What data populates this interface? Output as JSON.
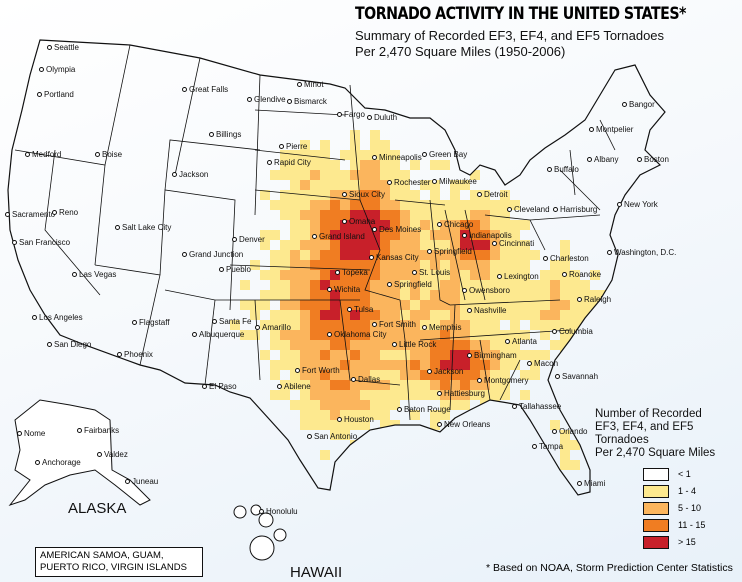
{
  "title": "TORNADO ACTIVITY IN THE UNITED STATES*",
  "subtitle_line1": "Summary  of Recorded EF3, EF4, and EF5 Tornadoes",
  "subtitle_line2": "Per 2,470 Square Miles (1950-2006)",
  "region_labels": {
    "alaska": "ALASKA",
    "hawaii": "HAWAII",
    "territories_line1": "AMERICAN SAMOA, GUAM,",
    "territories_line2": "PUERTO RICO, VIRGIN ISLANDS"
  },
  "legend": {
    "title_line1": "Number of Recorded",
    "title_line2": "EF3, EF4, and EF5 Tornadoes",
    "title_line3": "Per 2,470 Square Miles",
    "classes": [
      {
        "label": "< 1",
        "color": "#ffffff"
      },
      {
        "label": "1 - 4",
        "color": "#fde98f"
      },
      {
        "label": "5 - 10",
        "color": "#fbb55d"
      },
      {
        "label": "11 - 15",
        "color": "#f07d22"
      },
      {
        "label": "> 15",
        "color": "#c8202a"
      }
    ]
  },
  "footnote": "* Based on NOAA, Storm Prediction Center Statistics",
  "cities": [
    "Seattle",
    "Olympia",
    "Portland",
    "Medford",
    "Boise",
    "Great Falls",
    "Glendive",
    "Billings",
    "Minot",
    "Bismarck",
    "Fargo",
    "Duluth",
    "Jackson",
    "Rapid City",
    "Pierre",
    "Minneapolis",
    "Green Bay",
    "Rochester",
    "Milwaukee",
    "Sacramento",
    "Reno",
    "Salt Lake City",
    "Sioux City",
    "Des Moines",
    "Chicago",
    "Detroit",
    "Cleveland",
    "Buffalo",
    "Albany",
    "Boston",
    "Montpelier",
    "Bangor",
    "Harrisburg",
    "New York",
    "Washington, D.C.",
    "San Francisco",
    "Grand Island",
    "Omaha",
    "Denver",
    "Grand Junction",
    "Topeka",
    "Kansas City",
    "Springfield",
    "Indianapolis",
    "Cincinnati",
    "Charleston",
    "Las Vegas",
    "Pueblo",
    "St. Louis",
    "Lexington",
    "Roanoke",
    "Wichita",
    "Springfield",
    "Owensboro",
    "Raleigh",
    "Nashville",
    "Los Angeles",
    "Flagstaff",
    "Santa Fe",
    "Albuquerque",
    "Amarillo",
    "Tulsa",
    "Oklahoma City",
    "Fort Smith",
    "Memphis",
    "Little Rock",
    "Birmingham",
    "Atlanta",
    "Columbia",
    "San Diego",
    "Phoenix",
    "Abilene",
    "Fort Worth",
    "Dallas",
    "Jackson",
    "Macon",
    "Savannah",
    "Montgomery",
    "El Paso",
    "Hattiesburg",
    "Baton Rouge",
    "Houston",
    "New Orleans",
    "Tallahassee",
    "San Antonio",
    "Orlando",
    "Tampa",
    "Miami",
    "Fairbanks",
    "Nome",
    "Anchorage",
    "Valdez",
    "Juneau",
    "Honolulu"
  ]
}
